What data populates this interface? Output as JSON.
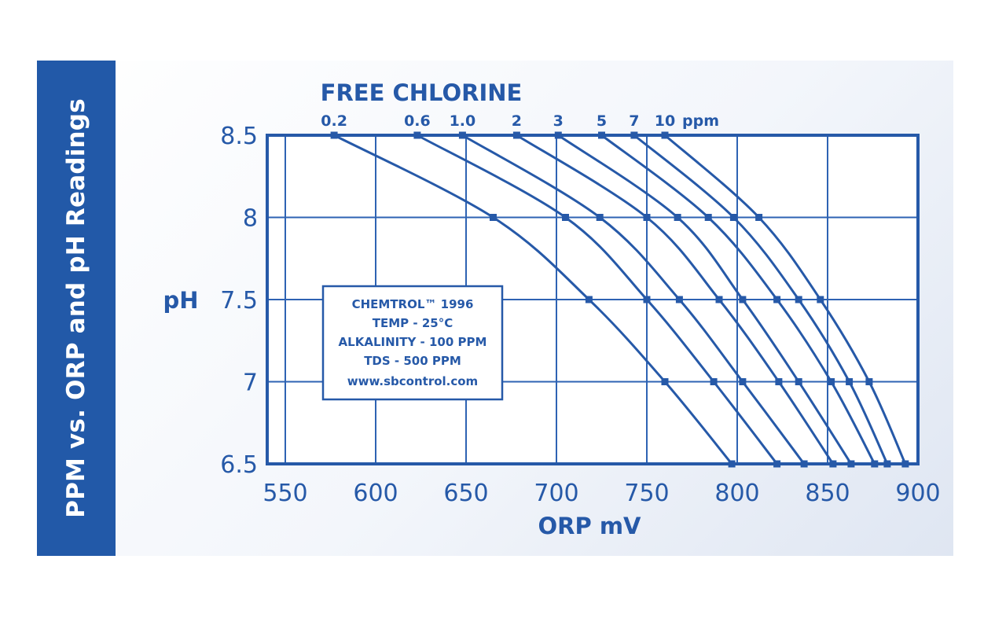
{
  "side_title": "PPM vs. ORP and pH Readings",
  "colors": {
    "band": "#2259a8",
    "line": "#2659a8",
    "grid": "#2e63b3"
  },
  "chart_data": {
    "type": "line",
    "title": "FREE CHLORINE",
    "xlabel": "ORP mV",
    "ylabel": "pH",
    "xlim": [
      540,
      900
    ],
    "ylim": [
      6.5,
      8.5
    ],
    "x_ticks": [
      "550",
      "600",
      "650",
      "700",
      "750",
      "800",
      "850",
      "900"
    ],
    "y_ticks": [
      "8.5",
      "8",
      "7.5",
      "7",
      "6.5"
    ],
    "top_unit": "ppm",
    "grid": true,
    "y_levels": [
      8.5,
      8.0,
      7.5,
      7.0,
      6.5
    ],
    "series": [
      {
        "name": "0.2",
        "x": [
          577,
          665,
          718,
          760,
          797
        ]
      },
      {
        "name": "0.6",
        "x": [
          623,
          705,
          750,
          787,
          822
        ]
      },
      {
        "name": "1.0",
        "x": [
          648,
          724,
          768,
          803,
          837
        ]
      },
      {
        "name": "2",
        "x": [
          678,
          750,
          790,
          823,
          853
        ]
      },
      {
        "name": "3",
        "x": [
          701,
          767,
          803,
          834,
          863
        ]
      },
      {
        "name": "5",
        "x": [
          725,
          784,
          822,
          852,
          876
        ]
      },
      {
        "name": "7",
        "x": [
          743,
          798,
          834,
          862,
          883
        ]
      },
      {
        "name": "10",
        "x": [
          760,
          812,
          846,
          873,
          893
        ]
      }
    ],
    "annotation": [
      "CHEMTROL™ 1996",
      "TEMP - 25°C",
      "ALKALINITY - 100 PPM",
      "TDS - 500 PPM",
      "www.sbcontrol.com"
    ]
  }
}
